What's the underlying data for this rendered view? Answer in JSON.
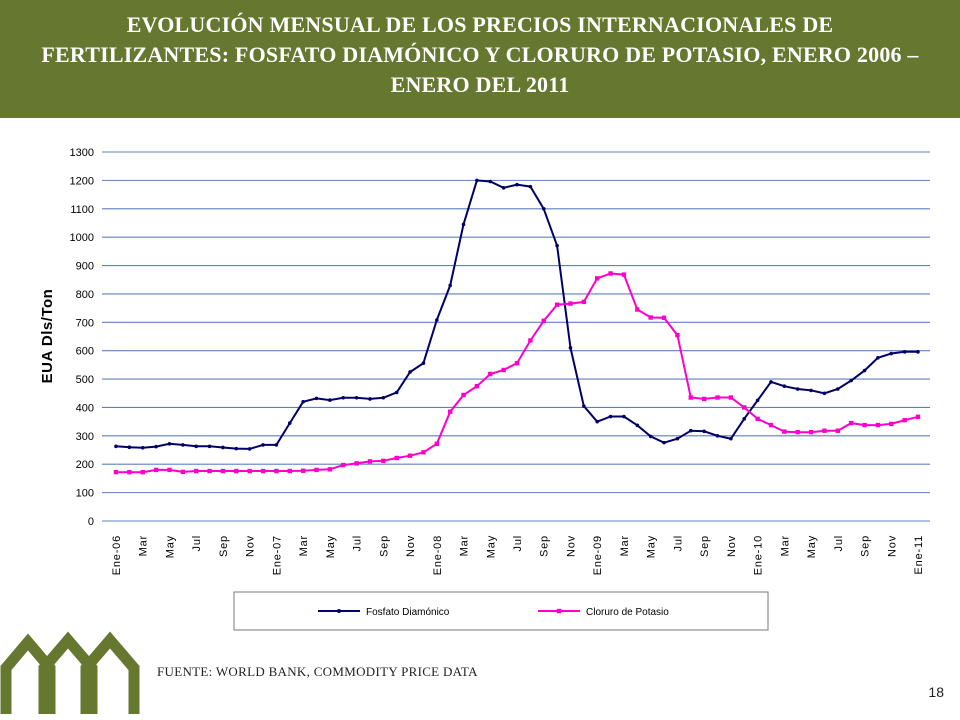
{
  "header": {
    "title": "EVOLUCIÓN MENSUAL DE LOS PRECIOS INTERNACIONALES DE FERTILIZANTES: FOSFATO DIAMÓNICO Y CLORURO DE POTASIO, ENERO 2006 – ENERO DEL 2011"
  },
  "footer": {
    "source": "FUENTE: WORLD BANK, COMMODITY PRICE DATA",
    "page_number": "18"
  },
  "colors": {
    "banner": "#66772f",
    "logo": "#66772f"
  },
  "chart_data": {
    "type": "line",
    "title": "",
    "xlabel": "",
    "ylabel": "EUA Dls/Ton",
    "ylim": [
      0,
      1300
    ],
    "yticks": [
      0,
      100,
      200,
      300,
      400,
      500,
      600,
      700,
      800,
      900,
      1000,
      1100,
      1200,
      1300
    ],
    "grid": true,
    "legend": "bottom",
    "x_months": [
      "2006-01",
      "2006-02",
      "2006-03",
      "2006-04",
      "2006-05",
      "2006-06",
      "2006-07",
      "2006-08",
      "2006-09",
      "2006-10",
      "2006-11",
      "2006-12",
      "2007-01",
      "2007-02",
      "2007-03",
      "2007-04",
      "2007-05",
      "2007-06",
      "2007-07",
      "2007-08",
      "2007-09",
      "2007-10",
      "2007-11",
      "2007-12",
      "2008-01",
      "2008-02",
      "2008-03",
      "2008-04",
      "2008-05",
      "2008-06",
      "2008-07",
      "2008-08",
      "2008-09",
      "2008-10",
      "2008-11",
      "2008-12",
      "2009-01",
      "2009-02",
      "2009-03",
      "2009-04",
      "2009-05",
      "2009-06",
      "2009-07",
      "2009-08",
      "2009-09",
      "2009-10",
      "2009-11",
      "2009-12",
      "2010-01",
      "2010-02",
      "2010-03",
      "2010-04",
      "2010-05",
      "2010-06",
      "2010-07",
      "2010-08",
      "2010-09",
      "2010-10",
      "2010-11",
      "2010-12",
      "2011-01"
    ],
    "tick_labels": [
      {
        "i": 0,
        "label": "Ene-06"
      },
      {
        "i": 2,
        "label": "Mar"
      },
      {
        "i": 4,
        "label": "May"
      },
      {
        "i": 6,
        "label": "Jul"
      },
      {
        "i": 8,
        "label": "Sep"
      },
      {
        "i": 10,
        "label": "Nov"
      },
      {
        "i": 12,
        "label": "Ene-07"
      },
      {
        "i": 14,
        "label": "Mar"
      },
      {
        "i": 16,
        "label": "May"
      },
      {
        "i": 18,
        "label": "Jul"
      },
      {
        "i": 20,
        "label": "Sep"
      },
      {
        "i": 22,
        "label": "Nov"
      },
      {
        "i": 24,
        "label": "Ene-08"
      },
      {
        "i": 26,
        "label": "Mar"
      },
      {
        "i": 28,
        "label": "May"
      },
      {
        "i": 30,
        "label": "Jul"
      },
      {
        "i": 32,
        "label": "Sep"
      },
      {
        "i": 34,
        "label": "Nov"
      },
      {
        "i": 36,
        "label": "Ene-09"
      },
      {
        "i": 38,
        "label": "Mar"
      },
      {
        "i": 40,
        "label": "May"
      },
      {
        "i": 42,
        "label": "Jul"
      },
      {
        "i": 44,
        "label": "Sep"
      },
      {
        "i": 46,
        "label": "Nov"
      },
      {
        "i": 48,
        "label": "Ene-10"
      },
      {
        "i": 50,
        "label": "Mar"
      },
      {
        "i": 52,
        "label": "May"
      },
      {
        "i": 54,
        "label": "Jul"
      },
      {
        "i": 56,
        "label": "Sep"
      },
      {
        "i": 58,
        "label": "Nov"
      },
      {
        "i": 60,
        "label": "Ene-11"
      }
    ],
    "series": [
      {
        "name": "Fosfato Diamónico",
        "color": "#000066",
        "values": [
          263,
          260,
          258,
          262,
          272,
          268,
          263,
          263,
          259,
          255,
          254,
          268,
          268,
          345,
          420,
          432,
          426,
          434,
          434,
          430,
          434,
          453,
          525,
          556,
          708,
          830,
          1045,
          1200,
          1196,
          1174,
          1185,
          1178,
          1100,
          970,
          610,
          405,
          350,
          368,
          368,
          337,
          298,
          276,
          290,
          318,
          316,
          300,
          290,
          360,
          425,
          490,
          475,
          465,
          460,
          450,
          465,
          495,
          530,
          575,
          590,
          596,
          596
        ]
      },
      {
        "name": "Cloruro de Potasio",
        "color": "#ff00cc",
        "values": [
          172,
          172,
          172,
          180,
          180,
          173,
          176,
          176,
          176,
          176,
          176,
          176,
          176,
          176,
          177,
          180,
          182,
          197,
          203,
          210,
          212,
          222,
          230,
          242,
          272,
          385,
          444,
          475,
          518,
          532,
          556,
          636,
          705,
          762,
          766,
          772,
          855,
          872,
          868,
          745,
          717,
          716,
          655,
          435,
          430,
          435,
          435,
          400,
          360,
          338,
          315,
          313,
          313,
          318,
          318,
          345,
          338,
          338,
          342,
          355,
          367
        ]
      }
    ]
  }
}
